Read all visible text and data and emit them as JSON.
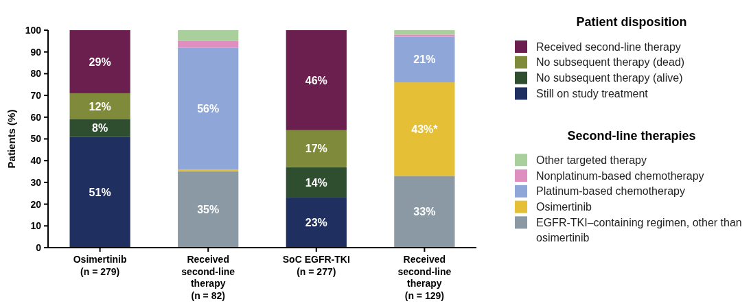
{
  "chart_data": {
    "type": "bar",
    "stacked": true,
    "ylabel": "Patients (%)",
    "ylim": [
      0,
      100
    ],
    "yticks": [
      0,
      10,
      20,
      30,
      40,
      50,
      60,
      70,
      80,
      90,
      100
    ],
    "legend": "right",
    "legend_title": "Patient disposition",
    "annotations": [
      "Second-line therapies"
    ],
    "categories": [
      "Osimertinib\n(n = 279)",
      "Received\nsecond-line\ntherapy\n(n = 82)",
      "SoC EGFR-TKI\n(n = 277)",
      "Received\nsecond-line\ntherapy\n(n = 129)"
    ],
    "series": [
      {
        "name": "Still on study treatment",
        "color": "#1f3060",
        "values": [
          51,
          null,
          23,
          null
        ],
        "value_labels": [
          "51%",
          null,
          "23%",
          null
        ]
      },
      {
        "name": "No subsequent therapy (alive)",
        "color": "#2f4d2f",
        "values": [
          8,
          null,
          14,
          null
        ],
        "value_labels": [
          "8%",
          null,
          "14%",
          null
        ]
      },
      {
        "name": "No subsequent therapy (dead)",
        "color": "#7f8a3a",
        "values": [
          12,
          null,
          17,
          null
        ],
        "value_labels": [
          "12%",
          null,
          "17%",
          null
        ]
      },
      {
        "name": "Received second-line therapy",
        "color": "#6b1f4f",
        "values": [
          29,
          null,
          46,
          null
        ],
        "value_labels": [
          "29%",
          null,
          "46%",
          null
        ]
      },
      {
        "name": "EGFR-TKI–containing regimen, other than osimertinib",
        "color": "#8a99a3",
        "values": [
          null,
          35,
          null,
          33
        ],
        "value_labels": [
          null,
          "35%",
          null,
          "33%"
        ]
      },
      {
        "name": "Osimertinib",
        "color": "#e5bf35",
        "values": [
          null,
          1,
          null,
          43
        ],
        "value_labels": [
          null,
          null,
          null,
          "43%*"
        ]
      },
      {
        "name": "Platinum-based chemotherapy",
        "color": "#8ea6d8",
        "values": [
          null,
          56,
          null,
          21
        ],
        "value_labels": [
          null,
          "56%",
          null,
          "21%"
        ]
      },
      {
        "name": "Nonplatinum-based chemotherapy",
        "color": "#df8fbf",
        "values": [
          null,
          3,
          null,
          1
        ],
        "value_labels": [
          null,
          null,
          null,
          null
        ]
      },
      {
        "name": "Other targeted therapy",
        "color": "#a8cf9c",
        "values": [
          null,
          5,
          null,
          2
        ],
        "value_labels": [
          null,
          null,
          null,
          null
        ]
      }
    ]
  }
}
